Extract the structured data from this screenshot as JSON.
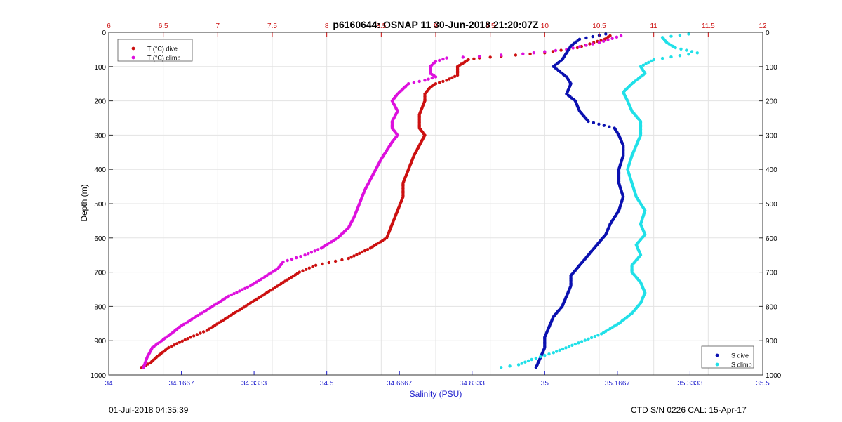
{
  "chart_data": {
    "type": "scatter",
    "title": "p6160644: OSNAP 11 30-Jun-2018 21:20:07Z",
    "xlabel": "Salinity (PSU)",
    "ylabel": "Depth (m)",
    "xlim": [
      34,
      35.5
    ],
    "ylim": [
      1000,
      0
    ],
    "y_reversed": true,
    "secondary_xlim": [
      6,
      12
    ],
    "grid": true,
    "x_ticks": [
      "34",
      "34.1667",
      "34.3333",
      "34.5",
      "34.6667",
      "34.8333",
      "35",
      "35.1667",
      "35.3333",
      "35.5"
    ],
    "y_ticks": [
      "0",
      "100",
      "200",
      "300",
      "400",
      "500",
      "600",
      "700",
      "800",
      "900",
      "1000"
    ],
    "secondary_x_ticks": [
      "6",
      "6.5",
      "7",
      "7.5",
      "8",
      "8.5",
      "9",
      "9.5",
      "10",
      "10.5",
      "11",
      "11.5",
      "12"
    ],
    "legends": [
      {
        "placement": "top-left",
        "entries": [
          "T (°C) dive",
          "T (°C) climb"
        ]
      },
      {
        "placement": "bottom-right",
        "entries": [
          "S dive",
          "S climb"
        ]
      }
    ],
    "series": [
      {
        "name": "T (°C) dive",
        "axis": "top",
        "color": "#cc1010",
        "points": [
          [
            10.6,
            10
          ],
          [
            10.55,
            20
          ],
          [
            10.45,
            30
          ],
          [
            10.3,
            45
          ],
          [
            10.0,
            60
          ],
          [
            9.6,
            70
          ],
          [
            9.4,
            75
          ],
          [
            9.3,
            80
          ],
          [
            9.25,
            90
          ],
          [
            9.2,
            100
          ],
          [
            9.2,
            110
          ],
          [
            9.2,
            125
          ],
          [
            9.1,
            140
          ],
          [
            9.0,
            150
          ],
          [
            8.95,
            160
          ],
          [
            8.9,
            180
          ],
          [
            8.9,
            200
          ],
          [
            8.85,
            240
          ],
          [
            8.85,
            280
          ],
          [
            8.9,
            300
          ],
          [
            8.85,
            330
          ],
          [
            8.8,
            360
          ],
          [
            8.75,
            400
          ],
          [
            8.7,
            440
          ],
          [
            8.7,
            480
          ],
          [
            8.65,
            520
          ],
          [
            8.6,
            560
          ],
          [
            8.55,
            600
          ],
          [
            8.4,
            630
          ],
          [
            8.2,
            660
          ],
          [
            7.9,
            680
          ],
          [
            7.75,
            700
          ],
          [
            7.6,
            730
          ],
          [
            7.45,
            760
          ],
          [
            7.3,
            790
          ],
          [
            7.2,
            810
          ],
          [
            7.05,
            840
          ],
          [
            6.9,
            870
          ],
          [
            6.75,
            890
          ],
          [
            6.55,
            920
          ],
          [
            6.45,
            945
          ],
          [
            6.38,
            965
          ],
          [
            6.3,
            978
          ]
        ]
      },
      {
        "name": "T (°C) climb",
        "axis": "top",
        "color": "#dd10dd",
        "points": [
          [
            10.7,
            10
          ],
          [
            10.5,
            30
          ],
          [
            10.2,
            50
          ],
          [
            9.8,
            63
          ],
          [
            9.4,
            70
          ],
          [
            9.1,
            75
          ],
          [
            9.0,
            85
          ],
          [
            8.95,
            100
          ],
          [
            8.95,
            120
          ],
          [
            9.0,
            130
          ],
          [
            8.9,
            140
          ],
          [
            8.75,
            150
          ],
          [
            8.7,
            165
          ],
          [
            8.65,
            180
          ],
          [
            8.6,
            200
          ],
          [
            8.65,
            230
          ],
          [
            8.6,
            260
          ],
          [
            8.6,
            280
          ],
          [
            8.65,
            300
          ],
          [
            8.6,
            320
          ],
          [
            8.55,
            345
          ],
          [
            8.5,
            370
          ],
          [
            8.45,
            400
          ],
          [
            8.4,
            430
          ],
          [
            8.35,
            460
          ],
          [
            8.3,
            500
          ],
          [
            8.25,
            540
          ],
          [
            8.2,
            570
          ],
          [
            8.1,
            600
          ],
          [
            7.95,
            630
          ],
          [
            7.8,
            650
          ],
          [
            7.6,
            670
          ],
          [
            7.55,
            690
          ],
          [
            7.45,
            710
          ],
          [
            7.3,
            740
          ],
          [
            7.1,
            770
          ],
          [
            6.95,
            800
          ],
          [
            6.8,
            830
          ],
          [
            6.65,
            860
          ],
          [
            6.55,
            885
          ],
          [
            6.4,
            920
          ],
          [
            6.35,
            950
          ],
          [
            6.32,
            978
          ]
        ]
      },
      {
        "name": "S dive",
        "axis": "bottom",
        "color": "#0a10b0",
        "points": [
          [
            35.14,
            5
          ],
          [
            35.08,
            20
          ],
          [
            35.06,
            40
          ],
          [
            35.05,
            60
          ],
          [
            35.04,
            80
          ],
          [
            35.02,
            100
          ],
          [
            35.05,
            130
          ],
          [
            35.06,
            150
          ],
          [
            35.05,
            180
          ],
          [
            35.07,
            200
          ],
          [
            35.08,
            230
          ],
          [
            35.1,
            260
          ],
          [
            35.16,
            280
          ],
          [
            35.17,
            300
          ],
          [
            35.18,
            330
          ],
          [
            35.18,
            360
          ],
          [
            35.17,
            400
          ],
          [
            35.17,
            440
          ],
          [
            35.18,
            480
          ],
          [
            35.17,
            520
          ],
          [
            35.15,
            560
          ],
          [
            35.14,
            590
          ],
          [
            35.12,
            620
          ],
          [
            35.1,
            650
          ],
          [
            35.08,
            680
          ],
          [
            35.06,
            710
          ],
          [
            35.06,
            740
          ],
          [
            35.05,
            770
          ],
          [
            35.04,
            800
          ],
          [
            35.02,
            830
          ],
          [
            35.01,
            860
          ],
          [
            35.0,
            890
          ],
          [
            35.0,
            920
          ],
          [
            34.99,
            950
          ],
          [
            34.98,
            978
          ]
        ]
      },
      {
        "name": "S climb",
        "axis": "bottom",
        "color": "#20e0e8",
        "points": [
          [
            35.33,
            5
          ],
          [
            35.27,
            15
          ],
          [
            35.28,
            30
          ],
          [
            35.3,
            45
          ],
          [
            35.35,
            60
          ],
          [
            35.25,
            80
          ],
          [
            35.22,
            100
          ],
          [
            35.23,
            120
          ],
          [
            35.2,
            150
          ],
          [
            35.18,
            175
          ],
          [
            35.19,
            200
          ],
          [
            35.2,
            230
          ],
          [
            35.22,
            260
          ],
          [
            35.22,
            300
          ],
          [
            35.21,
            330
          ],
          [
            35.2,
            360
          ],
          [
            35.19,
            400
          ],
          [
            35.2,
            440
          ],
          [
            35.21,
            480
          ],
          [
            35.23,
            520
          ],
          [
            35.22,
            560
          ],
          [
            35.23,
            590
          ],
          [
            35.21,
            620
          ],
          [
            35.22,
            650
          ],
          [
            35.2,
            680
          ],
          [
            35.2,
            700
          ],
          [
            35.22,
            730
          ],
          [
            35.23,
            760
          ],
          [
            35.22,
            790
          ],
          [
            35.2,
            820
          ],
          [
            35.17,
            850
          ],
          [
            35.13,
            880
          ],
          [
            35.07,
            910
          ],
          [
            35.02,
            935
          ],
          [
            34.97,
            955
          ],
          [
            34.94,
            970
          ],
          [
            34.9,
            978
          ]
        ]
      }
    ]
  },
  "footer": {
    "timestamp": "01-Jul-2018 04:35:39",
    "device_info": "CTD S/N 0226  CAL: 15-Apr-17"
  }
}
